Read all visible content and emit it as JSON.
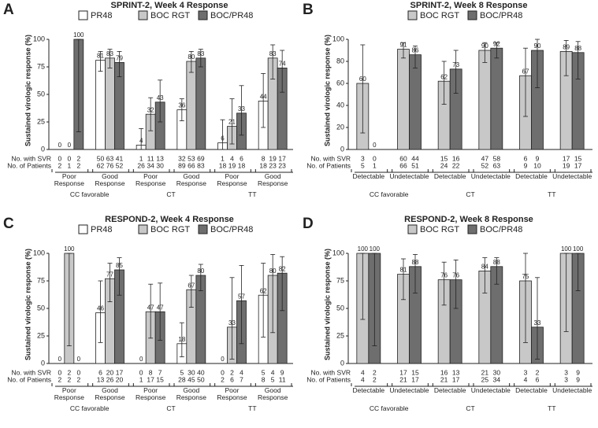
{
  "chart_data": [
    {
      "type": "bar",
      "panel_label": "A",
      "title": "SPRINT-2, Week 4 Response",
      "ylabel": "Sustained virologic response (%)",
      "ylim": [
        0,
        100
      ],
      "yticks": [
        0,
        25,
        50,
        75,
        100
      ],
      "row_labels": [
        "No. with SVR",
        "No. of Patients"
      ],
      "groups": [
        {
          "label": "CC favorable",
          "categories": [
            "Poor Response",
            "Good Response"
          ]
        },
        {
          "label": "CT",
          "categories": [
            "Poor Response",
            "Good Response"
          ]
        },
        {
          "label": "TT",
          "categories": [
            "Poor Response",
            "Good Response"
          ]
        }
      ],
      "series": [
        {
          "name": "PR48",
          "color": "#ffffff",
          "values": [
            0,
            81,
            4,
            36,
            6,
            44
          ],
          "ci_low": [
            0,
            71,
            0,
            26,
            0,
            20
          ],
          "ci_high": [
            0,
            89,
            19,
            46,
            27,
            69
          ],
          "n_svr": [
            0,
            50,
            1,
            32,
            1,
            8
          ],
          "n_patients": [
            2,
            62,
            26,
            89,
            18,
            18
          ]
        },
        {
          "name": "BOC RGT",
          "color": "#c8c8c8",
          "values": [
            0,
            83,
            32,
            80,
            21,
            83
          ],
          "ci_low": [
            0,
            74,
            17,
            70,
            5,
            64
          ],
          "ci_high": [
            0,
            91,
            47,
            89,
            46,
            95
          ],
          "n_svr": [
            0,
            63,
            11,
            53,
            4,
            19
          ],
          "n_patients": [
            1,
            76,
            34,
            66,
            19,
            23
          ]
        },
        {
          "name": "BOC/PR48",
          "color": "#6e6e6e",
          "values": [
            100,
            79,
            43,
            83,
            33,
            74
          ],
          "ci_low": [
            16,
            66,
            25,
            75,
            13,
            52
          ],
          "ci_high": [
            100,
            89,
            63,
            91,
            58,
            90
          ],
          "n_svr": [
            2,
            41,
            13,
            69,
            6,
            17
          ],
          "n_patients": [
            2,
            52,
            30,
            83,
            18,
            23
          ]
        }
      ]
    },
    {
      "type": "bar",
      "panel_label": "B",
      "title": "SPRINT-2, Week 8 Response",
      "ylabel": "Sustained virologic response (%)",
      "ylim": [
        0,
        100
      ],
      "yticks": [
        0,
        20,
        40,
        60,
        80,
        100
      ],
      "row_labels": [
        "No. with SVR",
        "No. of Patients"
      ],
      "groups": [
        {
          "label": "CC favorable",
          "categories": [
            "Detectable",
            "Undetectable"
          ]
        },
        {
          "label": "CT",
          "categories": [
            "Detectable",
            "Undetectable"
          ]
        },
        {
          "label": "TT",
          "categories": [
            "Detectable",
            "Undetectable"
          ]
        }
      ],
      "series": [
        {
          "name": "BOC RGT",
          "color": "#c8c8c8",
          "values": [
            60,
            91,
            62,
            90,
            67,
            89
          ],
          "ci_low": [
            15,
            83,
            41,
            79,
            30,
            67
          ],
          "ci_high": [
            95,
            97,
            80,
            97,
            92,
            99
          ],
          "n_svr": [
            3,
            60,
            15,
            47,
            6,
            17
          ],
          "n_patients": [
            5,
            66,
            24,
            52,
            9,
            19
          ]
        },
        {
          "name": "BOC/PR48",
          "color": "#6e6e6e",
          "values": [
            0,
            86,
            73,
            92,
            90,
            88
          ],
          "ci_low": [
            0,
            74,
            51,
            83,
            56,
            64
          ],
          "ci_high": [
            0,
            94,
            90,
            97,
            100,
            98
          ],
          "n_svr": [
            0,
            44,
            16,
            58,
            9,
            15
          ],
          "n_patients": [
            1,
            51,
            22,
            63,
            10,
            17
          ]
        }
      ]
    },
    {
      "type": "bar",
      "panel_label": "C",
      "title": "RESPOND-2, Week 4 Response",
      "ylabel": "Sustained virologic response (%)",
      "ylim": [
        0,
        100
      ],
      "yticks": [
        0,
        25,
        50,
        75,
        100
      ],
      "row_labels": [
        "No. with SVR",
        "No. of Patients"
      ],
      "groups": [
        {
          "label": "CC favorable",
          "categories": [
            "Poor Response",
            "Good Response"
          ]
        },
        {
          "label": "CT",
          "categories": [
            "Poor Response",
            "Good Response"
          ]
        },
        {
          "label": "TT",
          "categories": [
            "Poor Response",
            "Good Response"
          ]
        }
      ],
      "series": [
        {
          "name": "PR48",
          "color": "#ffffff",
          "values": [
            0,
            46,
            0,
            18,
            0,
            62
          ],
          "ci_low": [
            0,
            19,
            0,
            6,
            0,
            24
          ],
          "ci_high": [
            0,
            75,
            0,
            37,
            0,
            91
          ],
          "n_svr": [
            0,
            6,
            0,
            5,
            0,
            5
          ],
          "n_patients": [
            2,
            13,
            1,
            28,
            2,
            8
          ]
        },
        {
          "name": "BOC RGT",
          "color": "#c8c8c8",
          "values": [
            100,
            77,
            47,
            67,
            33,
            80
          ],
          "ci_low": [
            16,
            56,
            23,
            51,
            4,
            28
          ],
          "ci_high": [
            100,
            91,
            72,
            80,
            78,
            99
          ],
          "n_svr": [
            2,
            20,
            8,
            30,
            2,
            4
          ],
          "n_patients": [
            2,
            26,
            17,
            45,
            6,
            5
          ]
        },
        {
          "name": "BOC/PR48",
          "color": "#6e6e6e",
          "values": [
            0,
            85,
            47,
            80,
            57,
            82
          ],
          "ci_low": [
            0,
            62,
            21,
            66,
            18,
            48
          ],
          "ci_high": [
            0,
            96,
            73,
            90,
            89,
            97
          ],
          "n_svr": [
            0,
            17,
            7,
            40,
            4,
            9
          ],
          "n_patients": [
            2,
            20,
            15,
            50,
            7,
            11
          ]
        }
      ]
    },
    {
      "type": "bar",
      "panel_label": "D",
      "title": "RESPOND-2, Week 8 Response",
      "ylabel": "Sustained virologic response (%)",
      "ylim": [
        0,
        100
      ],
      "yticks": [
        0,
        25,
        50,
        75,
        100
      ],
      "row_labels": [
        "No. with SVR",
        "No. of Patients"
      ],
      "groups": [
        {
          "label": "CC favorable",
          "categories": [
            "Detectable",
            "Undetectable"
          ]
        },
        {
          "label": "CT",
          "categories": [
            "Detectable",
            "Undetectable"
          ]
        },
        {
          "label": "TT",
          "categories": [
            "Detectable",
            "Undetectable"
          ]
        }
      ],
      "series": [
        {
          "name": "BOC RGT",
          "color": "#c8c8c8",
          "values": [
            100,
            81,
            76,
            84,
            75,
            100
          ],
          "ci_low": [
            40,
            58,
            53,
            64,
            19,
            29
          ],
          "ci_high": [
            100,
            95,
            92,
            96,
            100,
            100
          ],
          "n_svr": [
            4,
            17,
            16,
            21,
            3,
            3
          ],
          "n_patients": [
            4,
            21,
            21,
            25,
            4,
            3
          ]
        },
        {
          "name": "BOC/PR48",
          "color": "#6e6e6e",
          "values": [
            100,
            88,
            76,
            88,
            33,
            100
          ],
          "ci_low": [
            16,
            64,
            50,
            72,
            4,
            66
          ],
          "ci_high": [
            100,
            99,
            94,
            96,
            78,
            100
          ],
          "n_svr": [
            2,
            15,
            13,
            30,
            2,
            9
          ],
          "n_patients": [
            2,
            17,
            17,
            34,
            6,
            9
          ]
        }
      ]
    }
  ]
}
